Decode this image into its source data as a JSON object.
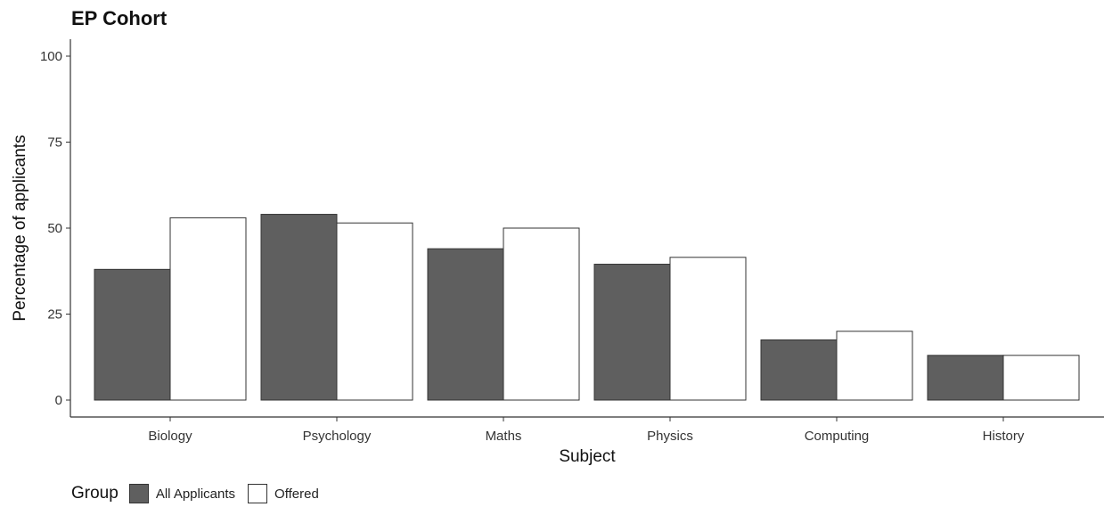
{
  "chart_data": {
    "type": "bar",
    "title": "EP Cohort",
    "xlabel": "Subject",
    "ylabel": "Percentage of applicants",
    "categories": [
      "Biology",
      "Psychology",
      "Maths",
      "Physics",
      "Computing",
      "History"
    ],
    "series": [
      {
        "name": "All Applicants",
        "values": [
          38,
          54,
          44,
          39.5,
          17.5,
          13
        ],
        "color": "#5f5f5f"
      },
      {
        "name": "Offered",
        "values": [
          53,
          51.5,
          50,
          41.5,
          20,
          13
        ],
        "color": "#ffffff"
      }
    ],
    "ylim": [
      0,
      100
    ],
    "yticks": [
      0,
      25,
      50,
      75,
      100
    ],
    "grid": false,
    "legend": {
      "title": "Group",
      "placement": "bottom-left"
    }
  }
}
